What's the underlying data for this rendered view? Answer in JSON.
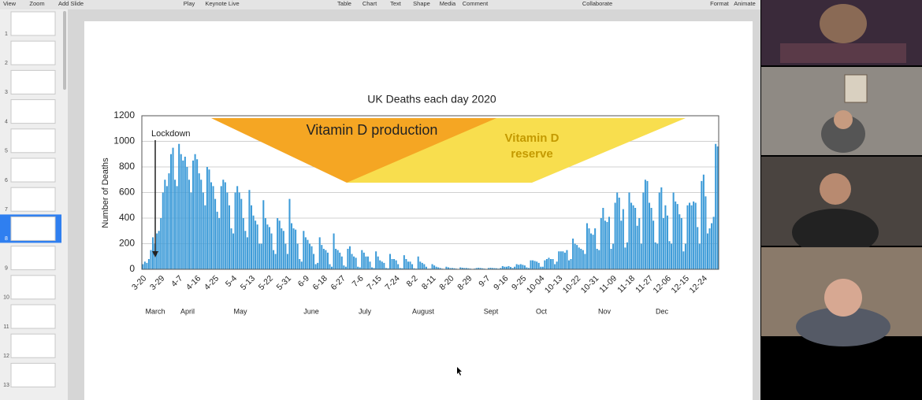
{
  "toolbar": [
    "View",
    "Zoom",
    "Add Slide",
    "Play",
    "Keynote Live",
    "Table",
    "Chart",
    "Text",
    "Shape",
    "Media",
    "Comment",
    "Collaborate",
    "Format",
    "Animate"
  ],
  "slide_numbers": [
    1,
    2,
    3,
    4,
    5,
    6,
    7,
    8,
    9,
    10,
    11,
    12,
    13
  ],
  "chart_data": {
    "type": "bar",
    "title": "UK Deaths each day 2020",
    "y_label": "Number of Deaths",
    "color": "#3d9bd8",
    "ylim": [
      0,
      1200
    ],
    "yticks": [
      0,
      200,
      400,
      600,
      800,
      1000,
      1200
    ],
    "grid": true,
    "annotations": {
      "lockdown": "Lockdown",
      "production": "Vitamin D production",
      "reserve": [
        "Vitamin D",
        "reserve"
      ]
    },
    "months": [
      "March",
      "April",
      "May",
      "June",
      "July",
      "August",
      "Sept",
      "Oct",
      "Nov",
      "Dec"
    ],
    "categories": [
      "3-20",
      null,
      null,
      null,
      null,
      null,
      null,
      null,
      null,
      "3-29",
      null,
      null,
      null,
      null,
      null,
      null,
      null,
      null,
      "4-7",
      null,
      null,
      null,
      null,
      null,
      null,
      null,
      null,
      "4-16",
      null,
      null,
      null,
      null,
      null,
      null,
      null,
      null,
      "4-25",
      null,
      null,
      null,
      null,
      null,
      null,
      null,
      null,
      "5-4",
      null,
      null,
      null,
      null,
      null,
      null,
      null,
      null,
      "5-13",
      null,
      null,
      null,
      null,
      null,
      null,
      null,
      null,
      "5-22",
      null,
      null,
      null,
      null,
      null,
      null,
      null,
      null,
      "5-31",
      null,
      null,
      null,
      null,
      null,
      null,
      null,
      null,
      "6-9",
      null,
      null,
      null,
      null,
      null,
      null,
      null,
      null,
      "6-18",
      null,
      null,
      null,
      null,
      null,
      null,
      null,
      null,
      "6-27",
      null,
      null,
      null,
      null,
      null,
      null,
      null,
      null,
      "7-6",
      null,
      null,
      null,
      null,
      null,
      null,
      null,
      null,
      "7-15",
      null,
      null,
      null,
      null,
      null,
      null,
      null,
      null,
      "7-24",
      null,
      null,
      null,
      null,
      null,
      null,
      null,
      null,
      "8-2",
      null,
      null,
      null,
      null,
      null,
      null,
      null,
      null,
      "8-11",
      null,
      null,
      null,
      null,
      null,
      null,
      null,
      null,
      "8-20",
      null,
      null,
      null,
      null,
      null,
      null,
      null,
      null,
      "8-29",
      null,
      null,
      null,
      null,
      null,
      null,
      null,
      null,
      "9-7",
      null,
      null,
      null,
      null,
      null,
      null,
      null,
      null,
      "9-16",
      null,
      null,
      null,
      null,
      null,
      null,
      null,
      null,
      "9-25",
      null,
      null,
      null,
      null,
      null,
      null,
      null,
      null,
      "10-04",
      null,
      null,
      null,
      null,
      null,
      null,
      null,
      null,
      "10-13",
      null,
      null,
      null,
      null,
      null,
      null,
      null,
      null,
      "10-22",
      null,
      null,
      null,
      null,
      null,
      null,
      null,
      null,
      "10-31",
      null,
      null,
      null,
      null,
      null,
      null,
      null,
      null,
      "11-09",
      null,
      null,
      null,
      null,
      null,
      null,
      null,
      null,
      "11-18",
      null,
      null,
      null,
      null,
      null,
      null,
      null,
      null,
      "11-27",
      null,
      null,
      null,
      null,
      null,
      null,
      null,
      null,
      "12-06",
      null,
      null,
      null,
      null,
      null,
      null,
      null,
      null,
      "12-15",
      null,
      null,
      null,
      null,
      null,
      null,
      null,
      null,
      "12-24",
      null,
      null,
      null,
      null,
      null,
      null,
      null
    ],
    "values": [
      40,
      60,
      50,
      80,
      150,
      250,
      200,
      280,
      300,
      400,
      600,
      700,
      650,
      750,
      900,
      950,
      700,
      650,
      980,
      900,
      850,
      880,
      800,
      700,
      600,
      850,
      900,
      860,
      750,
      700,
      600,
      500,
      800,
      780,
      680,
      650,
      550,
      450,
      400,
      650,
      700,
      680,
      600,
      500,
      320,
      280,
      600,
      650,
      600,
      550,
      400,
      300,
      250,
      620,
      500,
      420,
      380,
      350,
      200,
      200,
      540,
      400,
      350,
      330,
      280,
      150,
      120,
      400,
      380,
      320,
      300,
      200,
      120,
      550,
      360,
      320,
      310,
      200,
      80,
      60,
      300,
      250,
      230,
      200,
      180,
      120,
      40,
      50,
      250,
      190,
      160,
      150,
      130,
      40,
      20,
      280,
      160,
      150,
      130,
      100,
      30,
      20,
      160,
      180,
      120,
      100,
      90,
      20,
      15,
      150,
      130,
      100,
      100,
      60,
      15,
      10,
      140,
      100,
      70,
      60,
      50,
      10,
      8,
      120,
      80,
      80,
      70,
      40,
      10,
      8,
      110,
      80,
      60,
      60,
      40,
      8,
      5,
      100,
      60,
      50,
      40,
      20,
      5,
      5,
      40,
      30,
      20,
      15,
      10,
      5,
      3,
      20,
      15,
      10,
      10,
      8,
      5,
      3,
      15,
      12,
      10,
      10,
      8,
      5,
      3,
      5,
      10,
      12,
      10,
      8,
      5,
      3,
      10,
      12,
      10,
      9,
      8,
      5,
      10,
      25,
      20,
      20,
      25,
      18,
      10,
      20,
      40,
      35,
      40,
      35,
      30,
      15,
      10,
      70,
      70,
      65,
      60,
      50,
      20,
      20,
      70,
      80,
      90,
      80,
      80,
      40,
      60,
      140,
      140,
      140,
      130,
      150,
      70,
      80,
      240,
      200,
      190,
      170,
      160,
      150,
      120,
      360,
      320,
      280,
      270,
      320,
      160,
      150,
      400,
      480,
      380,
      370,
      410,
      160,
      200,
      520,
      600,
      560,
      380,
      470,
      170,
      210,
      600,
      520,
      500,
      480,
      340,
      400,
      200,
      600,
      700,
      690,
      520,
      480,
      380,
      210,
      200,
      600,
      640,
      400,
      500,
      420,
      220,
      200,
      600,
      530,
      510,
      430,
      400,
      140,
      200,
      500,
      520,
      500,
      530,
      520,
      330,
      200,
      690,
      740,
      570,
      280,
      320,
      360,
      410,
      980,
      960
    ]
  }
}
